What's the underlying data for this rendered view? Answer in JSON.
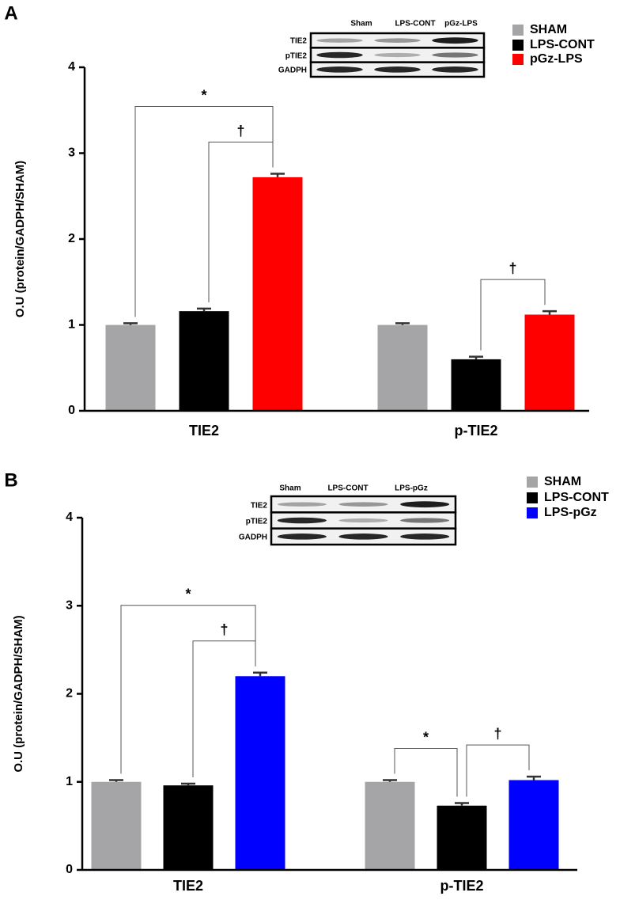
{
  "chart_data": [
    {
      "type": "bar",
      "panel": "A",
      "ylabel": "O.U (protein/GADPH/SHAM)",
      "categories": [
        "TIE2",
        "p-TIE2"
      ],
      "series": [
        {
          "name": "SHAM",
          "color": "#a5a5a8",
          "values": [
            1.0,
            1.0
          ],
          "error": [
            0.02,
            0.02
          ]
        },
        {
          "name": "LPS-CONT",
          "color": "#000000",
          "values": [
            1.16,
            0.6
          ],
          "error": [
            0.03,
            0.03
          ]
        },
        {
          "name": "pGz-LPS",
          "color": "#ff0000",
          "values": [
            2.72,
            1.12
          ],
          "error": [
            0.04,
            0.04
          ]
        }
      ],
      "ylim": [
        0,
        4
      ],
      "yticks": [
        0,
        1,
        2,
        3,
        4
      ],
      "brackets": [
        {
          "label": "†",
          "category": "TIE2",
          "from": "LPS-CONT",
          "to": "pGz-LPS"
        },
        {
          "label": "*",
          "category": "TIE2",
          "from": "SHAM",
          "to": "pGz-LPS"
        },
        {
          "label": "†",
          "category": "p-TIE2",
          "from": "LPS-CONT",
          "to": "pGz-LPS"
        }
      ],
      "inset": {
        "lanes": [
          "Sham",
          "LPS-CONT",
          "pGz-LPS"
        ],
        "rows": [
          "TIE2",
          "pTIE2",
          "GADPH"
        ]
      }
    },
    {
      "type": "bar",
      "panel": "B",
      "ylabel": "O.U (protein/GADPH/SHAM)",
      "categories": [
        "TIE2",
        "p-TIE2"
      ],
      "series": [
        {
          "name": "SHAM",
          "color": "#a5a5a8",
          "values": [
            1.0,
            1.0
          ],
          "error": [
            0.02,
            0.02
          ]
        },
        {
          "name": "LPS-CONT",
          "color": "#000000",
          "values": [
            0.96,
            0.73
          ],
          "error": [
            0.02,
            0.03
          ]
        },
        {
          "name": "LPS-pGz",
          "color": "#0000ff",
          "values": [
            2.2,
            1.02
          ],
          "error": [
            0.04,
            0.04
          ]
        }
      ],
      "ylim": [
        0,
        4
      ],
      "yticks": [
        0,
        1,
        2,
        3,
        4
      ],
      "brackets": [
        {
          "label": "†",
          "category": "TIE2",
          "from": "LPS-CONT",
          "to": "LPS-pGz"
        },
        {
          "label": "*",
          "category": "TIE2",
          "from": "SHAM",
          "to": "LPS-pGz"
        },
        {
          "label": "*",
          "category": "p-TIE2",
          "from": "SHAM",
          "to": "LPS-CONT"
        },
        {
          "label": "†",
          "category": "p-TIE2",
          "from": "LPS-CONT",
          "to": "LPS-pGz"
        }
      ],
      "inset": {
        "lanes": [
          "Sham",
          "LPS-CONT",
          "LPS-pGz"
        ],
        "rows": [
          "TIE2",
          "pTIE2",
          "GADPH"
        ]
      }
    }
  ]
}
